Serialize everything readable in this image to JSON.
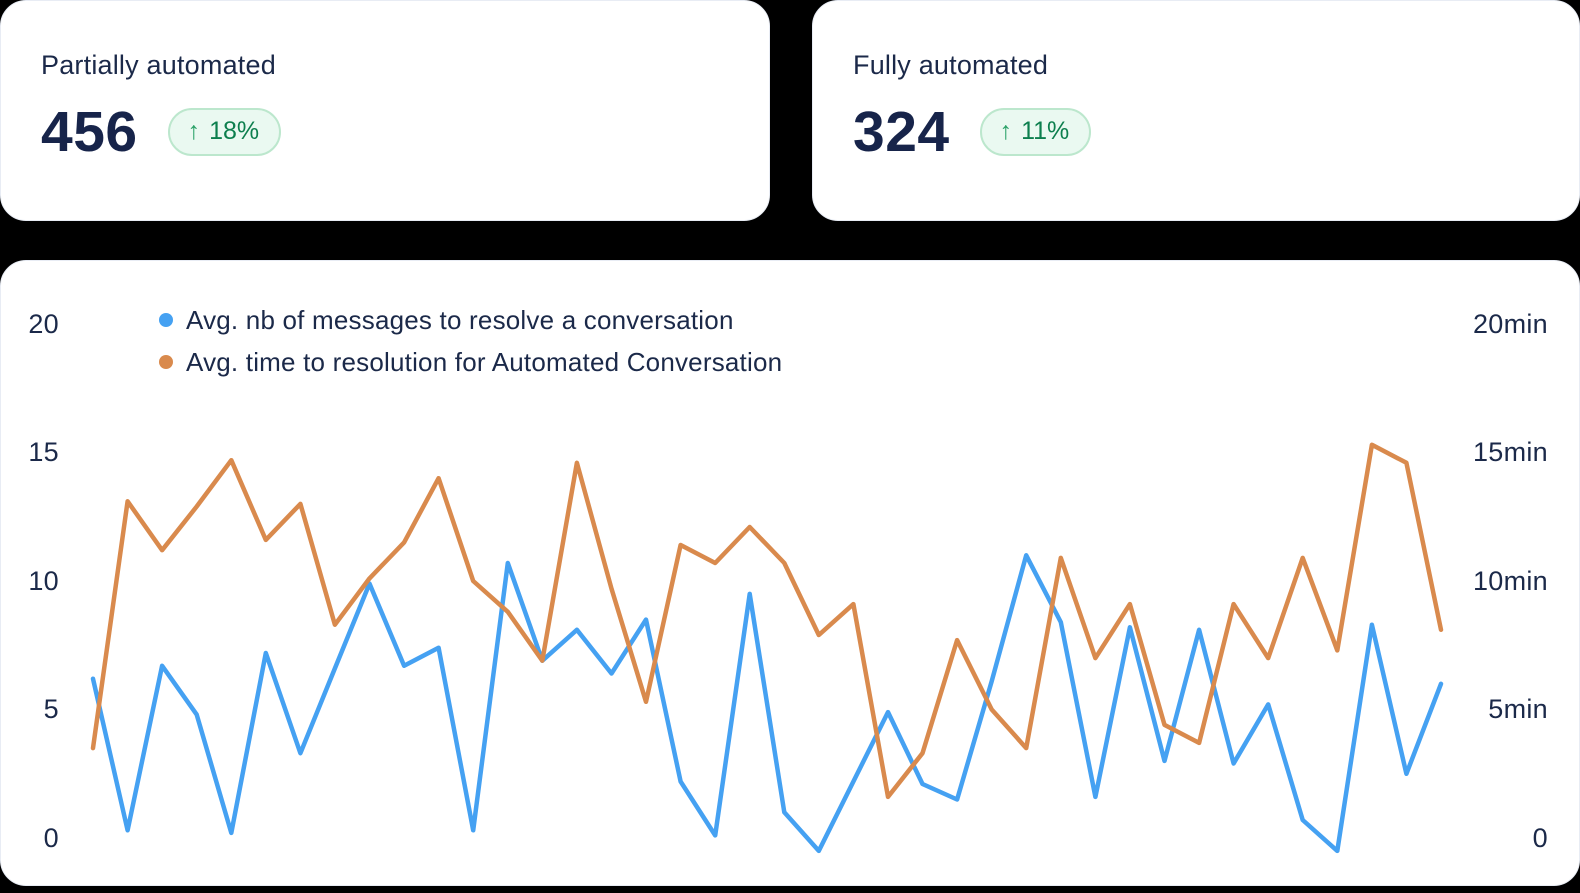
{
  "page": {
    "background": "#000000",
    "card_background": "#ffffff"
  },
  "stat_cards": [
    {
      "title": "Partially automated",
      "value": "456",
      "delta_arrow": "↑",
      "delta": "18%",
      "trend": "up"
    },
    {
      "title": "Fully automated",
      "value": "324",
      "delta_arrow": "↑",
      "delta": "11%",
      "trend": "up"
    }
  ],
  "badge_colors": {
    "background": "#eaf9f1",
    "border": "#bce7cd",
    "text": "#0d7f4e",
    "arrow": "#2ba268"
  },
  "chart": {
    "legend": [
      {
        "label": "Avg. nb of messages to resolve a conversation"
      },
      {
        "label": "Avg. time to resolution for Automated Conversation"
      }
    ],
    "left_axis": [
      "20",
      "15",
      "10",
      "5",
      "0"
    ],
    "right_axis": [
      "20min",
      "15min",
      "10min",
      "5min",
      "0"
    ]
  },
  "chart_data": {
    "type": "line",
    "x": [
      0,
      1,
      2,
      3,
      4,
      5,
      6,
      7,
      8,
      9,
      10,
      11,
      12,
      13,
      14,
      15,
      16,
      17,
      18,
      19,
      20,
      21,
      22,
      23,
      24,
      25,
      26,
      27,
      28,
      29,
      30,
      31,
      32,
      33,
      34,
      35,
      36,
      37,
      38,
      39
    ],
    "series": [
      {
        "name": "Avg. nb of messages to resolve a conversation",
        "color": "#45a1f2",
        "axis": "left",
        "values": [
          6.2,
          0.3,
          6.7,
          4.8,
          0.2,
          7.2,
          3.3,
          6.6,
          9.9,
          6.7,
          7.4,
          0.3,
          10.7,
          6.9,
          8.1,
          6.4,
          8.5,
          2.2,
          0.1,
          9.5,
          1.0,
          -0.5,
          2.2,
          4.9,
          2.1,
          1.5,
          6.1,
          11.0,
          8.4,
          1.6,
          8.2,
          3.0,
          8.1,
          2.9,
          5.2,
          0.7,
          -0.5,
          8.3,
          2.5,
          6.0
        ]
      },
      {
        "name": "Avg. time to resolution for Automated Conversation",
        "color": "#d98a4d",
        "axis": "right",
        "values": [
          3.5,
          13.1,
          11.2,
          12.9,
          14.7,
          11.6,
          13.0,
          8.3,
          10.1,
          11.5,
          14.0,
          10.0,
          8.8,
          6.9,
          14.6,
          9.7,
          5.3,
          11.4,
          10.7,
          12.1,
          10.7,
          7.9,
          9.1,
          1.6,
          3.3,
          7.7,
          5.0,
          3.5,
          10.9,
          7.0,
          9.1,
          4.4,
          3.7,
          9.1,
          7.0,
          10.9,
          7.3,
          15.3,
          14.6,
          8.1
        ]
      }
    ],
    "left_ylim": [
      0,
      20
    ],
    "right_ylim_minutes": [
      0,
      20
    ],
    "grid": false,
    "legend_position": "top-left",
    "title": "",
    "xlabel": "",
    "ylabel": ""
  }
}
